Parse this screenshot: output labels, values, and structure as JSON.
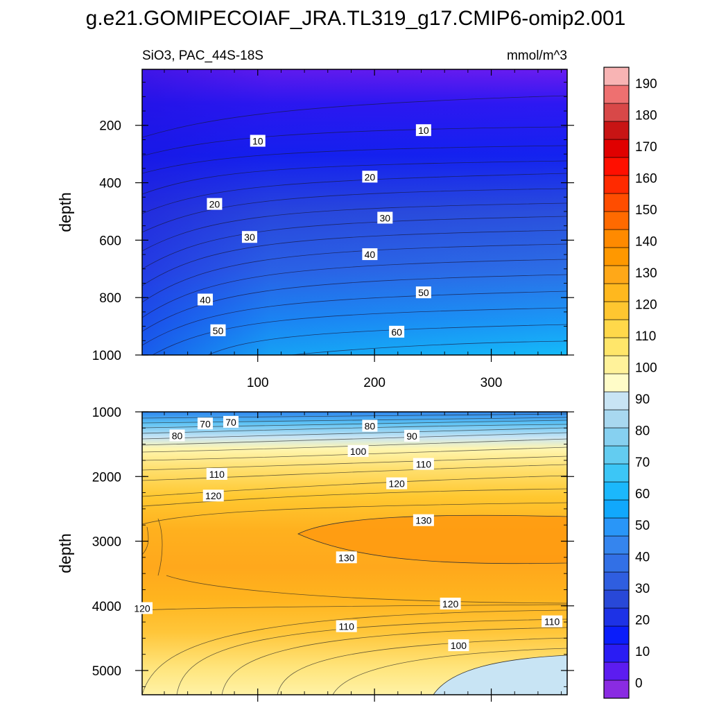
{
  "figure_title": "g.e21.GOMIPECOIAF_JRA.TL319_g17.CMIP6-omip2.001",
  "chart_data": [
    {
      "type": "heatmap",
      "title": "SiO3, PAC_44S-18S",
      "units": "mmol/m^3",
      "ylabel": "depth",
      "xlabel": "",
      "x_ticks": [
        100,
        200,
        300
      ],
      "y_ticks": [
        200,
        400,
        600,
        800,
        1000
      ],
      "xlim": [
        1,
        365
      ],
      "ylim": [
        1000,
        5
      ],
      "y_reversed": true,
      "contour_labels": [
        {
          "value": 10,
          "x": 100,
          "y": 255
        },
        {
          "value": 10,
          "x": 242,
          "y": 218
        },
        {
          "value": 20,
          "x": 63,
          "y": 475
        },
        {
          "value": 20,
          "x": 196,
          "y": 380
        },
        {
          "value": 30,
          "x": 93,
          "y": 590
        },
        {
          "value": 30,
          "x": 209,
          "y": 523
        },
        {
          "value": 40,
          "x": 55,
          "y": 808
        },
        {
          "value": 40,
          "x": 196,
          "y": 650
        },
        {
          "value": 50,
          "x": 66,
          "y": 915
        },
        {
          "value": 50,
          "x": 242,
          "y": 783
        },
        {
          "value": 60,
          "x": 219,
          "y": 920
        }
      ]
    },
    {
      "type": "heatmap",
      "title": "",
      "units": "",
      "ylabel": "depth",
      "xlabel": "",
      "x_ticks": [],
      "y_ticks": [
        1000,
        2000,
        3000,
        4000,
        5000
      ],
      "xlim": [
        1,
        365
      ],
      "ylim": [
        5375,
        1000
      ],
      "y_reversed": true,
      "contour_labels": [
        {
          "value": 70,
          "x": 55,
          "y": 1185
        },
        {
          "value": 70,
          "x": 77,
          "y": 1160
        },
        {
          "value": 80,
          "x": 31,
          "y": 1370
        },
        {
          "value": 80,
          "x": 196,
          "y": 1220
        },
        {
          "value": 90,
          "x": 232,
          "y": 1375
        },
        {
          "value": 100,
          "x": 186,
          "y": 1610
        },
        {
          "value": 110,
          "x": 65,
          "y": 1965
        },
        {
          "value": 110,
          "x": 242,
          "y": 1810
        },
        {
          "value": 120,
          "x": 62,
          "y": 2300
        },
        {
          "value": 120,
          "x": 219,
          "y": 2110
        },
        {
          "value": 130,
          "x": 242,
          "y": 2680
        },
        {
          "value": 130,
          "x": 176,
          "y": 3255
        },
        {
          "value": 120,
          "x": 1,
          "y": 4040
        },
        {
          "value": 120,
          "x": 265,
          "y": 3970
        },
        {
          "value": 110,
          "x": 176,
          "y": 4320
        },
        {
          "value": 110,
          "x": 352,
          "y": 4245
        },
        {
          "value": 100,
          "x": 272,
          "y": 4615
        }
      ]
    }
  ],
  "colorbar": {
    "labels": [
      "0",
      "10",
      "20",
      "30",
      "40",
      "50",
      "60",
      "70",
      "80",
      "90",
      "100",
      "110",
      "120",
      "130",
      "140",
      "150",
      "160",
      "170",
      "180",
      "190"
    ],
    "colors": [
      "#8a2be2",
      "#5c1cf0",
      "#2a1cf4",
      "#0a1dfa",
      "#1d32e6",
      "#2848d8",
      "#2f5ee0",
      "#3270e6",
      "#3585ee",
      "#2996f8",
      "#11a8fc",
      "#1bb8fc",
      "#3cc6f6",
      "#63ccf0",
      "#86d0f0",
      "#a8d8f0",
      "#c8e4f4",
      "#fffcc8",
      "#fff29a",
      "#ffe66a",
      "#ffd84a",
      "#ffc630",
      "#ffb81e",
      "#ffa818",
      "#ff9800",
      "#ff8a00",
      "#ff6a00",
      "#ff4d00",
      "#ff2a00",
      "#ff0f00",
      "#e00000",
      "#c81414",
      "#d84848",
      "#ee7070",
      "#f8b4b4"
    ]
  }
}
